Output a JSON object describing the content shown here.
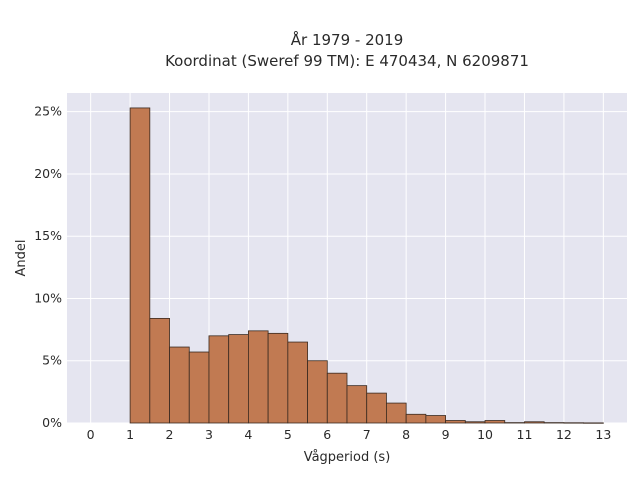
{
  "chart_data": {
    "type": "bar",
    "title_line1": "År 1979 - 2019",
    "title_line2": "Koordinat (Sweref 99 TM): E 470434, N 6209871",
    "xlabel": "Vågperiod (s)",
    "ylabel": "Andel",
    "xlim": [
      -0.6,
      13.6
    ],
    "ylim": [
      0,
      0.265
    ],
    "x_ticks": [
      0,
      1,
      2,
      3,
      4,
      5,
      6,
      7,
      8,
      9,
      10,
      11,
      12,
      13
    ],
    "x_tick_labels": [
      "0",
      "1",
      "2",
      "3",
      "4",
      "5",
      "6",
      "7",
      "8",
      "9",
      "10",
      "11",
      "12",
      "13"
    ],
    "y_ticks": [
      0,
      0.05,
      0.1,
      0.15,
      0.2,
      0.25
    ],
    "y_tick_labels": [
      "0%",
      "5%",
      "10%",
      "15%",
      "20%",
      "25%"
    ],
    "bin_width": 0.5,
    "bins": [
      {
        "start": 1.0,
        "value": 0.253
      },
      {
        "start": 1.5,
        "value": 0.084
      },
      {
        "start": 2.0,
        "value": 0.061
      },
      {
        "start": 2.5,
        "value": 0.057
      },
      {
        "start": 3.0,
        "value": 0.07
      },
      {
        "start": 3.5,
        "value": 0.071
      },
      {
        "start": 4.0,
        "value": 0.074
      },
      {
        "start": 4.5,
        "value": 0.072
      },
      {
        "start": 5.0,
        "value": 0.065
      },
      {
        "start": 5.5,
        "value": 0.05
      },
      {
        "start": 6.0,
        "value": 0.04
      },
      {
        "start": 6.5,
        "value": 0.03
      },
      {
        "start": 7.0,
        "value": 0.024
      },
      {
        "start": 7.5,
        "value": 0.016
      },
      {
        "start": 8.0,
        "value": 0.007
      },
      {
        "start": 8.5,
        "value": 0.006
      },
      {
        "start": 9.0,
        "value": 0.002
      },
      {
        "start": 9.5,
        "value": 0.001
      },
      {
        "start": 10.0,
        "value": 0.002
      },
      {
        "start": 10.5,
        "value": 0.0003
      },
      {
        "start": 11.0,
        "value": 0.001
      },
      {
        "start": 11.5,
        "value": 0.0003
      },
      {
        "start": 12.0,
        "value": 0.0002
      },
      {
        "start": 12.5,
        "value": 0.0001
      }
    ],
    "grid": true,
    "colors": {
      "bar_fill": "#c17a52",
      "bar_edge": "#3a2a20",
      "plot_background": "#e5e5f0",
      "grid": "#ffffff"
    }
  }
}
